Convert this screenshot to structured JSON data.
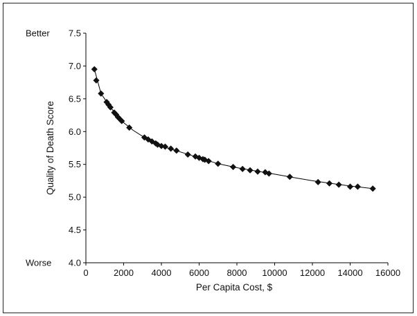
{
  "chart_data": {
    "type": "scatter",
    "title": "",
    "xlabel": "Per Capita Cost, $",
    "ylabel": "Quality of Death Score",
    "xlim": [
      0,
      16000
    ],
    "ylim": [
      4.0,
      7.5
    ],
    "xticks": [
      0,
      2000,
      4000,
      6000,
      8000,
      10000,
      12000,
      14000,
      16000
    ],
    "xtick_labels": [
      "0",
      "2000",
      "4000",
      "6000",
      "8000",
      "10000",
      "12000",
      "14000",
      "16000"
    ],
    "yticks": [
      4.0,
      4.5,
      5.0,
      5.5,
      6.0,
      6.5,
      7.0,
      7.5
    ],
    "ytick_labels": [
      "4.0",
      "4.5",
      "5.0",
      "5.5",
      "6.0",
      "6.5",
      "7.0",
      "7.5"
    ],
    "y_annotations": {
      "top": "Better",
      "bottom": "Worse"
    },
    "grid": false,
    "marker": "diamond",
    "fit_line": true,
    "points": [
      [
        450,
        6.95
      ],
      [
        550,
        6.78
      ],
      [
        800,
        6.58
      ],
      [
        1100,
        6.45
      ],
      [
        1200,
        6.41
      ],
      [
        1300,
        6.37
      ],
      [
        1500,
        6.29
      ],
      [
        1600,
        6.26
      ],
      [
        1700,
        6.22
      ],
      [
        1800,
        6.19
      ],
      [
        1900,
        6.16
      ],
      [
        2300,
        6.06
      ],
      [
        3100,
        5.91
      ],
      [
        3300,
        5.88
      ],
      [
        3500,
        5.85
      ],
      [
        3700,
        5.82
      ],
      [
        3800,
        5.8
      ],
      [
        4000,
        5.78
      ],
      [
        4200,
        5.77
      ],
      [
        4500,
        5.74
      ],
      [
        4800,
        5.71
      ],
      [
        5400,
        5.65
      ],
      [
        5800,
        5.62
      ],
      [
        6000,
        5.6
      ],
      [
        6200,
        5.58
      ],
      [
        6300,
        5.57
      ],
      [
        6500,
        5.55
      ],
      [
        7000,
        5.51
      ],
      [
        7800,
        5.46
      ],
      [
        8300,
        5.43
      ],
      [
        8700,
        5.41
      ],
      [
        9100,
        5.39
      ],
      [
        9500,
        5.38
      ],
      [
        9700,
        5.36
      ],
      [
        10800,
        5.31
      ],
      [
        12300,
        5.23
      ],
      [
        12900,
        5.21
      ],
      [
        13400,
        5.19
      ],
      [
        14000,
        5.16
      ],
      [
        14400,
        5.16
      ],
      [
        15200,
        5.13
      ]
    ],
    "curve": [
      [
        450,
        6.95
      ],
      [
        800,
        6.58
      ],
      [
        1300,
        6.37
      ],
      [
        1900,
        6.16
      ],
      [
        2500,
        6.02
      ],
      [
        3100,
        5.91
      ],
      [
        4000,
        5.78
      ],
      [
        5000,
        5.69
      ],
      [
        6000,
        5.6
      ],
      [
        7000,
        5.51
      ],
      [
        8000,
        5.45
      ],
      [
        9000,
        5.4
      ],
      [
        10000,
        5.35
      ],
      [
        11000,
        5.3
      ],
      [
        12000,
        5.25
      ],
      [
        13000,
        5.21
      ],
      [
        14000,
        5.17
      ],
      [
        15200,
        5.13
      ]
    ]
  }
}
